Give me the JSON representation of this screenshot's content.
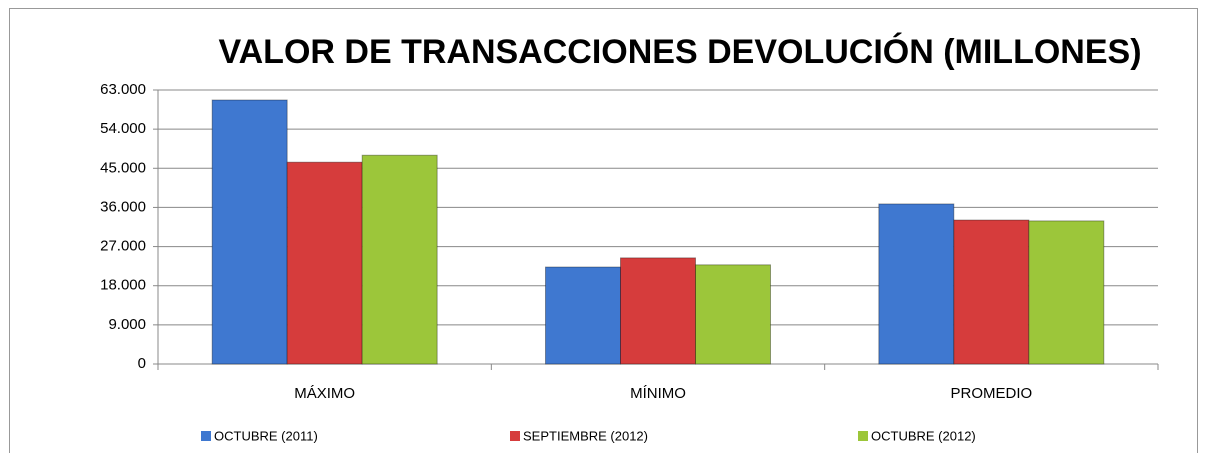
{
  "chart_data": {
    "type": "bar",
    "title": "VALOR DE TRANSACCIONES DEVOLUCIÓN (MILLONES)",
    "categories": [
      "MÁXIMO",
      "MÍNIMO",
      "PROMEDIO"
    ],
    "series": [
      {
        "name": "OCTUBRE (2011)",
        "color": "#3f78d0",
        "values": [
          60700,
          22300,
          36800
        ]
      },
      {
        "name": "SEPTIEMBRE (2012)",
        "color": "#d63c3c",
        "values": [
          46400,
          24400,
          33100
        ]
      },
      {
        "name": "OCTUBRE (2012)",
        "color": "#9cc63a",
        "values": [
          48000,
          22800,
          32900
        ]
      }
    ],
    "ylim": [
      0,
      63000
    ],
    "yticks": [
      0,
      {
        "value": 9000,
        "label": "9.000"
      },
      {
        "value": 18000,
        "label": "18.000"
      },
      {
        "value": 27000,
        "label": "27.000"
      },
      {
        "value": 36000,
        "label": "36.000"
      },
      {
        "value": 45000,
        "label": "45.000"
      },
      {
        "value": 54000,
        "label": "54.000"
      },
      {
        "value": 63000,
        "label": "63.000"
      }
    ],
    "grid": true,
    "legend": "bottom"
  }
}
